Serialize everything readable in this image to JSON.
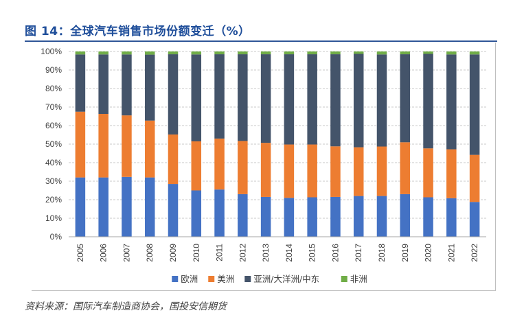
{
  "header": {
    "title": "图 14：全球汽车销售市场份额变迁（%）"
  },
  "footer": {
    "source": "资料来源：国际汽车制造商协会，国投安信期货"
  },
  "chart_data": {
    "type": "bar",
    "stacked": true,
    "title": "",
    "xlabel": "",
    "ylabel": "",
    "ylim": [
      0,
      100
    ],
    "y_unit": "%",
    "y_ticks": [
      "0%",
      "10%",
      "20%",
      "30%",
      "40%",
      "50%",
      "60%",
      "70%",
      "80%",
      "90%",
      "100%"
    ],
    "grid": "horizontal-dashed",
    "legend_position": "bottom",
    "categories": [
      "2005",
      "2006",
      "2007",
      "2008",
      "2009",
      "2010",
      "2011",
      "2012",
      "2013",
      "2014",
      "2015",
      "2016",
      "2017",
      "2018",
      "2019",
      "2020",
      "2021",
      "2022"
    ],
    "series": [
      {
        "name": "欧洲",
        "color": "#4472c4",
        "values": [
          32,
          32,
          32.3,
          32,
          28.5,
          25,
          25.5,
          23,
          21.5,
          21,
          21.3,
          21.5,
          22,
          22,
          23,
          21.3,
          20.8,
          18.8
        ]
      },
      {
        "name": "美洲",
        "color": "#ed7d31",
        "values": [
          35.5,
          34.3,
          33.2,
          30.7,
          26.7,
          26.5,
          27.5,
          28.7,
          29.2,
          28.8,
          28.5,
          27.3,
          26.3,
          26.7,
          28,
          26.4,
          26.4,
          25.4
        ]
      },
      {
        "name": "亚洲/大洋洲/中东",
        "color": "#44546a",
        "values": [
          30.9,
          32.1,
          32.9,
          35.6,
          43.3,
          46.9,
          45.5,
          46.8,
          47.8,
          48.7,
          48.7,
          49.7,
          50.4,
          49.7,
          47.5,
          51,
          51.2,
          54.2
        ]
      },
      {
        "name": "非洲",
        "color": "#70ad47",
        "values": [
          1.6,
          1.6,
          1.6,
          1.7,
          1.5,
          1.6,
          1.5,
          1.5,
          1.5,
          1.5,
          1.5,
          1.5,
          1.3,
          1.6,
          1.5,
          1.3,
          1.6,
          1.6
        ]
      }
    ]
  }
}
